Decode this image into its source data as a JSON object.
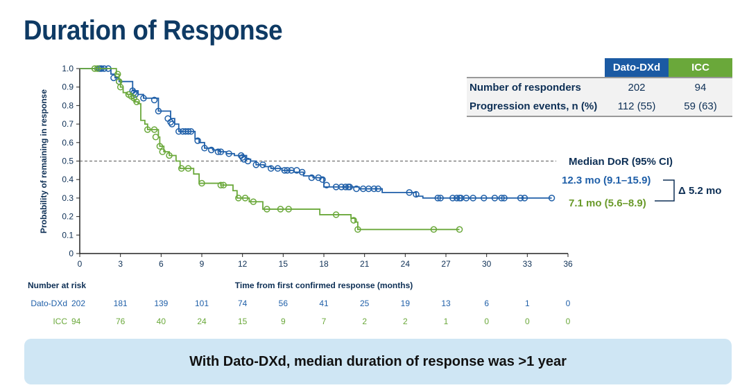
{
  "title": "Duration of Response",
  "table": {
    "headers": [
      "",
      "Dato-DXd",
      "ICC"
    ],
    "rows": [
      [
        "Number of responders",
        "202",
        "94"
      ],
      [
        "Progression events, n (%)",
        "112 (55)",
        "59 (63)"
      ]
    ]
  },
  "median": {
    "heading": "Median DoR (95% CI)",
    "dato": "12.3 mo (9.1–15.9)",
    "icc": "7.1 mo (5.6–8.9)",
    "delta": "Δ 5.2 mo"
  },
  "risk": {
    "heading": "Number at risk",
    "rows": [
      {
        "name": "Dato-DXd",
        "color": "#1f5fa8",
        "values": [
          202,
          181,
          139,
          101,
          74,
          56,
          41,
          25,
          19,
          13,
          6,
          1,
          0
        ]
      },
      {
        "name": "ICC",
        "color": "#6aa83a",
        "values": [
          94,
          76,
          40,
          24,
          15,
          9,
          7,
          2,
          2,
          1,
          0,
          0,
          0
        ]
      }
    ]
  },
  "banner": "With Dato-DXd, median duration of response was >1 year",
  "chart_data": {
    "type": "line",
    "subtype": "kaplan-meier",
    "xlabel": "Time from first confirmed response (months)",
    "ylabel": "Probability of remaining in response",
    "xlim": [
      0,
      36
    ],
    "ylim": [
      0,
      1
    ],
    "xticks": [
      0,
      3,
      6,
      9,
      12,
      15,
      18,
      21,
      24,
      27,
      30,
      33,
      36
    ],
    "yticks": [
      0,
      0.1,
      0.2,
      0.3,
      0.4,
      0.5,
      0.6,
      0.7,
      0.8,
      0.9,
      1.0
    ],
    "reference_line": 0.5,
    "series": [
      {
        "name": "Dato-DXd",
        "color": "#1f5fa8",
        "steps": [
          [
            0,
            1
          ],
          [
            2.3,
            0.97
          ],
          [
            2.6,
            0.95
          ],
          [
            2.9,
            0.93
          ],
          [
            3.9,
            0.88
          ],
          [
            4.3,
            0.86
          ],
          [
            4.7,
            0.84
          ],
          [
            5.8,
            0.77
          ],
          [
            6.7,
            0.73
          ],
          [
            7.0,
            0.7
          ],
          [
            7.3,
            0.66
          ],
          [
            8.5,
            0.62
          ],
          [
            8.8,
            0.6
          ],
          [
            9.2,
            0.57
          ],
          [
            9.8,
            0.56
          ],
          [
            10.3,
            0.55
          ],
          [
            10.8,
            0.54
          ],
          [
            11.4,
            0.53
          ],
          [
            12.3,
            0.51
          ],
          [
            12.6,
            0.5
          ],
          [
            13.0,
            0.48
          ],
          [
            13.6,
            0.47
          ],
          [
            14.1,
            0.46
          ],
          [
            14.9,
            0.45
          ],
          [
            15.8,
            0.44
          ],
          [
            16.5,
            0.42
          ],
          [
            17.2,
            0.41
          ],
          [
            18.0,
            0.36
          ],
          [
            20.6,
            0.35
          ],
          [
            22.3,
            0.33
          ],
          [
            24.8,
            0.31
          ],
          [
            25.3,
            0.3
          ],
          [
            34.8,
            0.3
          ]
        ],
        "censors": [
          [
            1.4,
            1
          ],
          [
            1.5,
            1
          ],
          [
            1.6,
            1
          ],
          [
            1.8,
            1
          ],
          [
            2.1,
            1
          ],
          [
            2.5,
            0.95
          ],
          [
            2.9,
            0.93
          ],
          [
            3.9,
            0.88
          ],
          [
            4.0,
            0.87
          ],
          [
            4.1,
            0.86
          ],
          [
            4.7,
            0.84
          ],
          [
            5.5,
            0.83
          ],
          [
            5.8,
            0.77
          ],
          [
            6.5,
            0.73
          ],
          [
            6.7,
            0.71
          ],
          [
            6.8,
            0.7
          ],
          [
            7.3,
            0.66
          ],
          [
            7.6,
            0.66
          ],
          [
            7.8,
            0.66
          ],
          [
            8.0,
            0.66
          ],
          [
            8.2,
            0.66
          ],
          [
            8.7,
            0.61
          ],
          [
            9.2,
            0.57
          ],
          [
            9.7,
            0.56
          ],
          [
            10.2,
            0.55
          ],
          [
            10.4,
            0.55
          ],
          [
            11.0,
            0.54
          ],
          [
            11.9,
            0.53
          ],
          [
            12.0,
            0.52
          ],
          [
            12.1,
            0.51
          ],
          [
            12.4,
            0.5
          ],
          [
            13.0,
            0.48
          ],
          [
            13.5,
            0.48
          ],
          [
            14.1,
            0.46
          ],
          [
            14.6,
            0.46
          ],
          [
            15.1,
            0.45
          ],
          [
            15.3,
            0.45
          ],
          [
            15.6,
            0.45
          ],
          [
            16.0,
            0.45
          ],
          [
            16.4,
            0.44
          ],
          [
            17.1,
            0.41
          ],
          [
            17.6,
            0.41
          ],
          [
            17.9,
            0.4
          ],
          [
            18.2,
            0.37
          ],
          [
            18.9,
            0.36
          ],
          [
            19.3,
            0.36
          ],
          [
            19.6,
            0.36
          ],
          [
            19.8,
            0.36
          ],
          [
            19.9,
            0.36
          ],
          [
            20.4,
            0.35
          ],
          [
            20.9,
            0.35
          ],
          [
            21.3,
            0.35
          ],
          [
            21.7,
            0.35
          ],
          [
            22.0,
            0.35
          ],
          [
            24.3,
            0.33
          ],
          [
            24.8,
            0.32
          ],
          [
            26.4,
            0.3
          ],
          [
            26.6,
            0.3
          ],
          [
            27.5,
            0.3
          ],
          [
            27.8,
            0.3
          ],
          [
            28.0,
            0.3
          ],
          [
            28.1,
            0.3
          ],
          [
            28.5,
            0.3
          ],
          [
            29.0,
            0.3
          ],
          [
            29.8,
            0.3
          ],
          [
            30.6,
            0.3
          ],
          [
            31.1,
            0.3
          ],
          [
            31.3,
            0.3
          ],
          [
            32.5,
            0.3
          ],
          [
            32.8,
            0.3
          ],
          [
            34.8,
            0.3
          ]
        ]
      },
      {
        "name": "ICC",
        "color": "#6aa83a",
        "steps": [
          [
            0,
            1
          ],
          [
            2.7,
            0.97
          ],
          [
            2.9,
            0.94
          ],
          [
            3.0,
            0.9
          ],
          [
            3.2,
            0.87
          ],
          [
            3.5,
            0.86
          ],
          [
            3.8,
            0.84
          ],
          [
            4.0,
            0.82
          ],
          [
            4.3,
            0.81
          ],
          [
            4.5,
            0.72
          ],
          [
            4.8,
            0.7
          ],
          [
            5.0,
            0.67
          ],
          [
            5.8,
            0.63
          ],
          [
            5.9,
            0.58
          ],
          [
            6.2,
            0.55
          ],
          [
            6.6,
            0.53
          ],
          [
            7.1,
            0.5
          ],
          [
            7.4,
            0.46
          ],
          [
            8.4,
            0.43
          ],
          [
            8.8,
            0.38
          ],
          [
            10.4,
            0.37
          ],
          [
            11.3,
            0.34
          ],
          [
            11.6,
            0.3
          ],
          [
            12.5,
            0.28
          ],
          [
            13.5,
            0.24
          ],
          [
            17.7,
            0.21
          ],
          [
            20.0,
            0.19
          ],
          [
            20.3,
            0.17
          ],
          [
            20.5,
            0.13
          ],
          [
            28.0,
            0.13
          ]
        ],
        "censors": [
          [
            1.1,
            1
          ],
          [
            1.3,
            1
          ],
          [
            2.8,
            0.97
          ],
          [
            2.9,
            0.93
          ],
          [
            3.0,
            0.9
          ],
          [
            3.6,
            0.86
          ],
          [
            3.8,
            0.85
          ],
          [
            4.0,
            0.84
          ],
          [
            4.2,
            0.82
          ],
          [
            5.0,
            0.67
          ],
          [
            5.5,
            0.67
          ],
          [
            5.6,
            0.63
          ],
          [
            5.9,
            0.58
          ],
          [
            6.1,
            0.55
          ],
          [
            6.6,
            0.53
          ],
          [
            7.5,
            0.46
          ],
          [
            8.0,
            0.46
          ],
          [
            9.0,
            0.38
          ],
          [
            10.4,
            0.37
          ],
          [
            10.6,
            0.37
          ],
          [
            11.7,
            0.3
          ],
          [
            12.2,
            0.3
          ],
          [
            12.8,
            0.28
          ],
          [
            13.8,
            0.24
          ],
          [
            14.8,
            0.24
          ],
          [
            15.4,
            0.24
          ],
          [
            18.9,
            0.21
          ],
          [
            20.2,
            0.18
          ],
          [
            20.5,
            0.13
          ],
          [
            26.1,
            0.13
          ],
          [
            28.0,
            0.13
          ]
        ]
      }
    ]
  }
}
